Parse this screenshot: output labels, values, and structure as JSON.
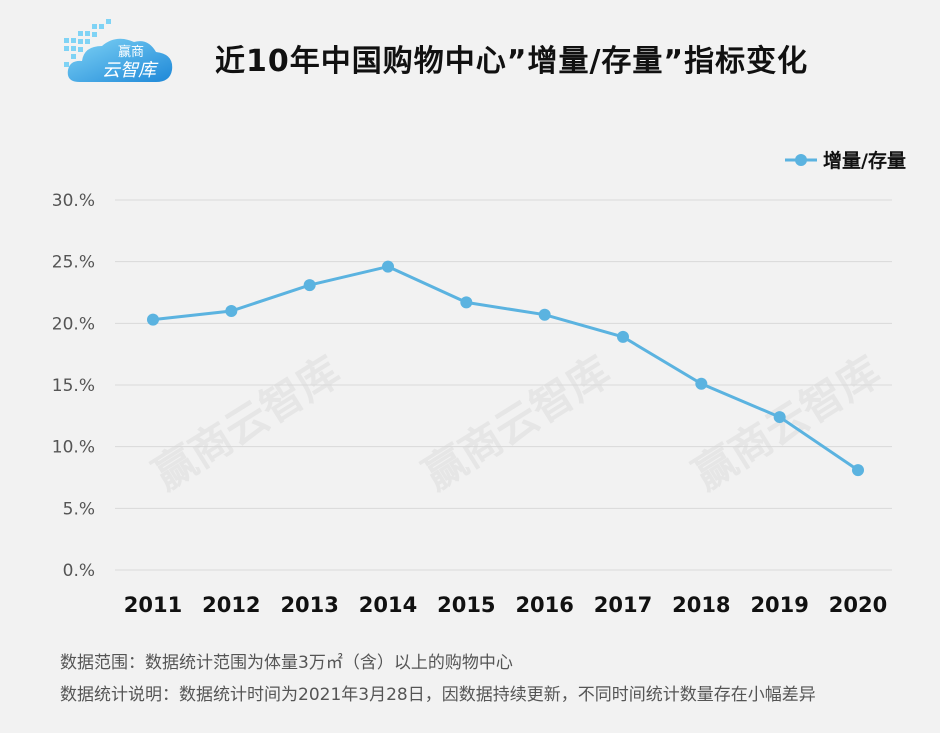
{
  "logo": {
    "line1": "赢商",
    "line2": "云智库",
    "accent": "#2aa7e6"
  },
  "header": {
    "title": "近10年中国购物中心”增量/存量”指标变化"
  },
  "watermark": "赢商云智库",
  "chart_data": {
    "type": "line",
    "title": "近10年中国购物中心”增量/存量”指标变化",
    "xlabel": "",
    "ylabel": "",
    "categories": [
      "2011",
      "2012",
      "2013",
      "2014",
      "2015",
      "2016",
      "2017",
      "2018",
      "2019",
      "2020"
    ],
    "series": [
      {
        "name": "增量/存量",
        "values": [
          20.3,
          21.0,
          23.1,
          24.6,
          21.7,
          20.7,
          18.9,
          15.1,
          12.4,
          8.1
        ],
        "color": "#5bb3e0"
      }
    ],
    "ylim": [
      0,
      30
    ],
    "yticks": [
      "0.%",
      "5.%",
      "10.%",
      "15.%",
      "20.%",
      "25.%",
      "30.%"
    ],
    "grid": true,
    "legend": "top-right"
  },
  "notes": {
    "line1": "数据范围：数据统计范围为体量3万㎡（含）以上的购物中心",
    "line2": "数据统计说明：数据统计时间为2021年3月28日，因数据持续更新，不同时间统计数量存在小幅差异"
  }
}
